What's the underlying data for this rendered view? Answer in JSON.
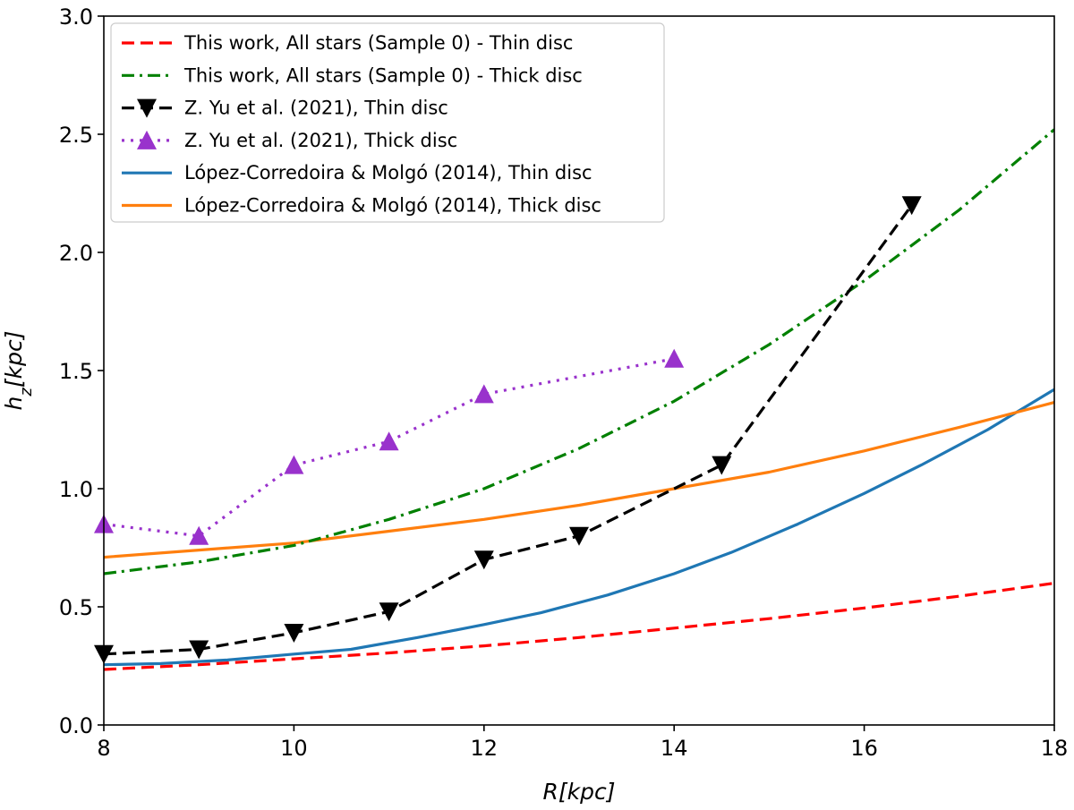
{
  "chart_data": {
    "type": "line",
    "title": "",
    "xlabel": "R[kpc]",
    "ylabel": "h_z[kpc]",
    "xlim": [
      8,
      18
    ],
    "ylim": [
      0.0,
      3.0
    ],
    "xticks": [
      8,
      10,
      12,
      14,
      16,
      18
    ],
    "xtick_labels": [
      "8",
      "10",
      "12",
      "14",
      "16",
      "18"
    ],
    "yticks": [
      0.0,
      0.5,
      1.0,
      1.5,
      2.0,
      2.5,
      3.0
    ],
    "ytick_labels": [
      "0.0",
      "0.5",
      "1.0",
      "1.5",
      "2.0",
      "2.5",
      "3.0"
    ],
    "grid": false,
    "legend_position": "top-left",
    "series": [
      {
        "name": "This work, All stars (Sample 0) - Thin disc",
        "color": "#ff0000",
        "style": "dashed",
        "marker": "none",
        "x": [
          8,
          9,
          10,
          11,
          12,
          13,
          14,
          15,
          16,
          17,
          18
        ],
        "y": [
          0.235,
          0.255,
          0.28,
          0.305,
          0.335,
          0.37,
          0.41,
          0.45,
          0.495,
          0.545,
          0.6
        ]
      },
      {
        "name": "This work, All stars (Sample 0) - Thick disc",
        "color": "#008000",
        "style": "dashdot",
        "marker": "none",
        "x": [
          8,
          9,
          10,
          11,
          12,
          13,
          14,
          15,
          16,
          17,
          18
        ],
        "y": [
          0.64,
          0.69,
          0.76,
          0.87,
          1.0,
          1.17,
          1.37,
          1.61,
          1.88,
          2.18,
          2.52
        ]
      },
      {
        "name": "Z. Yu et al. (2021), Thin disc",
        "color": "#000000",
        "style": "dashed",
        "marker": "triangle-down",
        "x": [
          8,
          9,
          10,
          11,
          12,
          13,
          14.5,
          16.5
        ],
        "y": [
          0.3,
          0.32,
          0.39,
          0.48,
          0.7,
          0.8,
          1.1,
          2.2
        ]
      },
      {
        "name": "Z. Yu et al. (2021), Thick disc",
        "color": "#9932cc",
        "style": "dotted",
        "marker": "triangle-up",
        "x": [
          8,
          9,
          10,
          11,
          12,
          14
        ],
        "y": [
          0.85,
          0.8,
          1.1,
          1.2,
          1.4,
          1.55
        ]
      },
      {
        "name": "López-Corredoira & Molgó (2014), Thin disc",
        "color": "#1f77b4",
        "style": "solid",
        "marker": "none",
        "x": [
          8,
          8.6,
          9.3,
          10,
          10.6,
          11.3,
          12,
          12.6,
          13.3,
          14,
          14.6,
          15.3,
          16,
          16.6,
          17.3,
          18
        ],
        "y": [
          0.255,
          0.26,
          0.275,
          0.3,
          0.32,
          0.37,
          0.425,
          0.475,
          0.55,
          0.64,
          0.73,
          0.85,
          0.98,
          1.1,
          1.25,
          1.42
        ]
      },
      {
        "name": "López-Corredoira & Molgó (2014), Thick disc",
        "color": "#ff7f0e",
        "style": "solid",
        "marker": "none",
        "x": [
          8,
          9,
          10,
          11,
          12,
          13,
          14,
          15,
          16,
          17,
          18
        ],
        "y": [
          0.71,
          0.74,
          0.77,
          0.82,
          0.87,
          0.93,
          1.0,
          1.07,
          1.16,
          1.26,
          1.365
        ]
      }
    ]
  }
}
